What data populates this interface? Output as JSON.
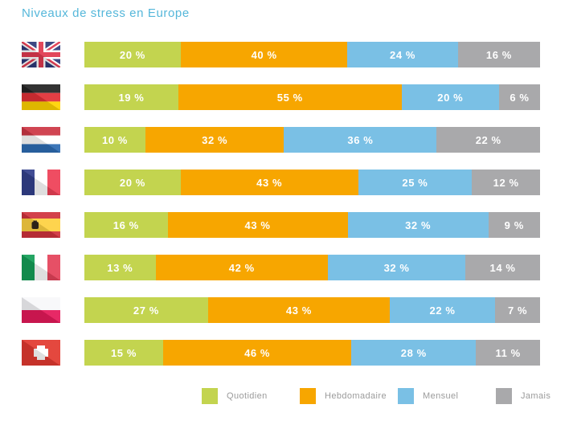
{
  "header": {
    "title": "Niveaux de stress en Europe",
    "title_color": "#55b7da"
  },
  "chart_data": {
    "type": "bar",
    "orientation": "horizontal-stacked",
    "title": "Niveaux de stress en Europe",
    "unit": "%",
    "value_label_format": "{v} %",
    "axes": "none",
    "grid": false,
    "legend_position": "bottom",
    "categories": [
      "United Kingdom",
      "Germany",
      "Netherlands",
      "France",
      "Spain",
      "Italy",
      "Poland",
      "Switzerland"
    ],
    "flags": [
      "flag-united-kingdom",
      "flag-germany",
      "flag-netherlands",
      "flag-france",
      "flag-spain",
      "flag-italy",
      "flag-poland",
      "flag-switzerland"
    ],
    "series": [
      {
        "name": "Quotidien",
        "color": "#c3d44f",
        "values": [
          20,
          19,
          10,
          20,
          16,
          13,
          27,
          15
        ]
      },
      {
        "name": "Hebdomadaire",
        "color": "#f7a600",
        "values": [
          40,
          55,
          32,
          43,
          43,
          42,
          43,
          46
        ]
      },
      {
        "name": "Mensuel",
        "color": "#7ac0e5",
        "values": [
          24,
          20,
          36,
          25,
          32,
          32,
          22,
          28
        ]
      },
      {
        "name": "Jamais",
        "color": "#a9a9ab",
        "values": [
          16,
          6,
          22,
          12,
          9,
          14,
          7,
          11
        ]
      }
    ]
  }
}
